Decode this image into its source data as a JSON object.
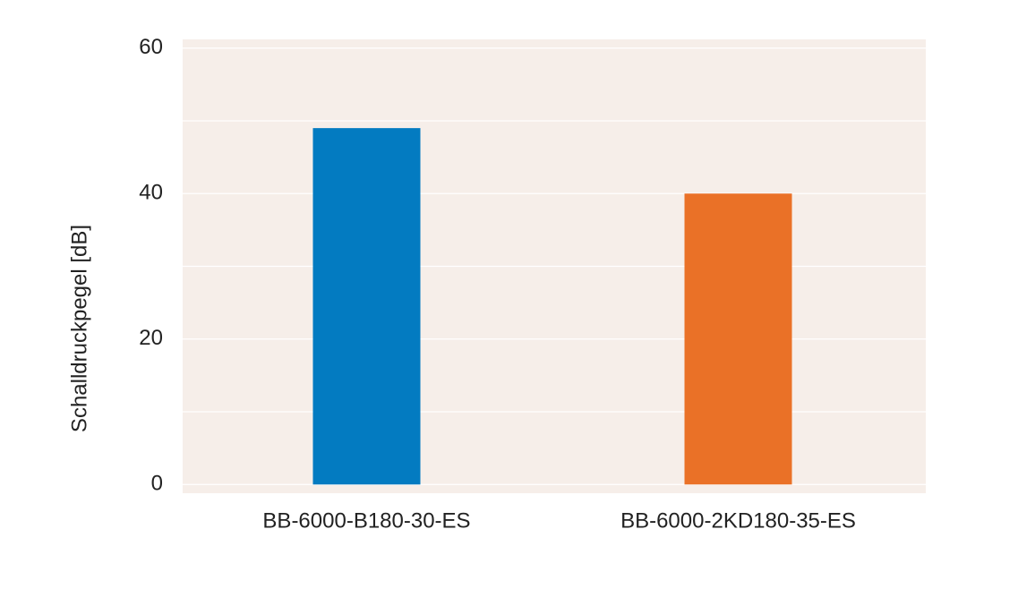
{
  "chart_data": {
    "type": "bar",
    "y_label": "Schalldruckpegel [dB]",
    "categories": [
      "BB-6000-B180-30-ES",
      "BB-6000-2KD180-35-ES"
    ],
    "values": [
      49,
      40
    ],
    "colors": [
      "#037bc1",
      "#ea7127"
    ],
    "ylim": [
      -1.2,
      61.2
    ],
    "yticks": [
      0,
      20,
      40,
      60
    ],
    "minor_yticks": [
      10,
      30,
      50
    ],
    "grid": true
  }
}
